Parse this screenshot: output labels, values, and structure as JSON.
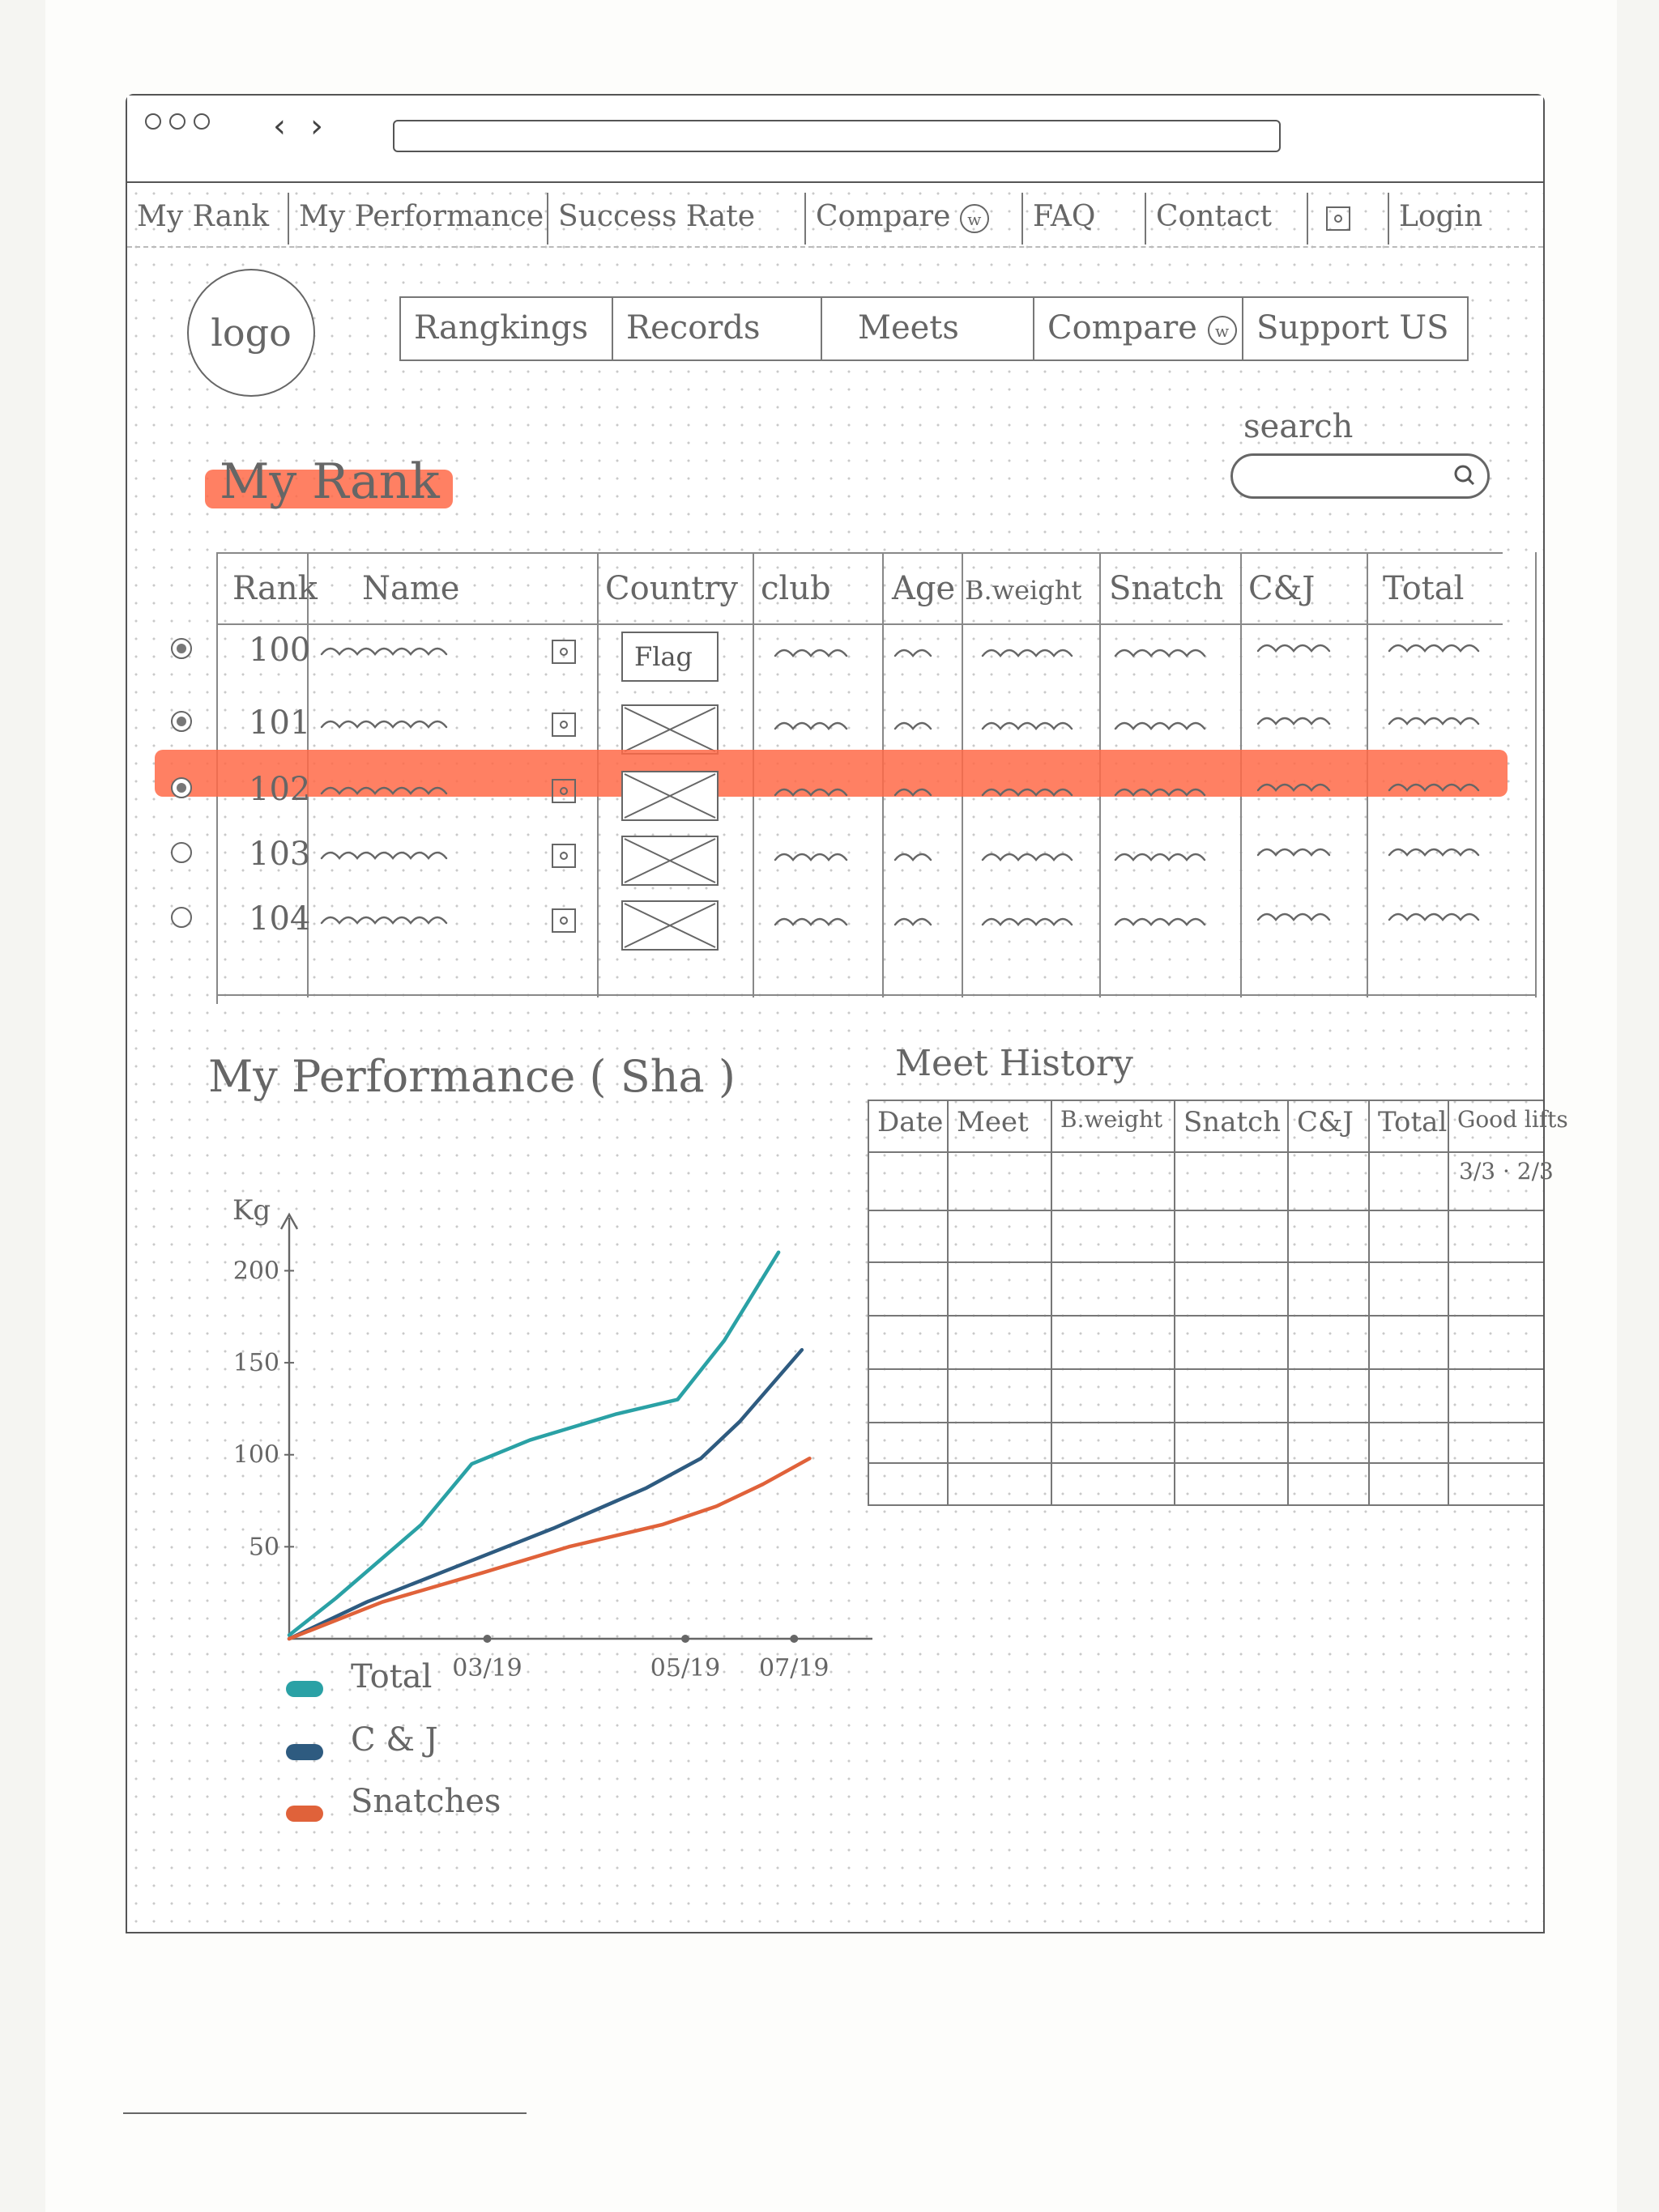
{
  "top_nav": {
    "items": [
      "My Rank",
      "My Performance",
      "Success Rate",
      "Compare",
      "FAQ",
      "Contact",
      "Login"
    ],
    "compare_badge": "w"
  },
  "logo": {
    "text": "logo"
  },
  "sub_nav": {
    "items": [
      "Rangkings",
      "Records",
      "Meets",
      "Compare",
      "Support US"
    ],
    "compare_badge": "w"
  },
  "page_title": "My Rank",
  "search": {
    "label": "search",
    "placeholder": ""
  },
  "rank_table": {
    "headers": [
      "Rank",
      "Name",
      "Country",
      "club",
      "Age",
      "B.weight",
      "Snatch",
      "C&J",
      "Total"
    ],
    "rows": [
      {
        "rank": "100",
        "flag": "Flag",
        "selected": true,
        "highlighted": false
      },
      {
        "rank": "101",
        "flag": "",
        "selected": true,
        "highlighted": false
      },
      {
        "rank": "102",
        "flag": "",
        "selected": true,
        "highlighted": true
      },
      {
        "rank": "103",
        "flag": "",
        "selected": false,
        "highlighted": false
      },
      {
        "rank": "104",
        "flag": "",
        "selected": false,
        "highlighted": false
      }
    ]
  },
  "performance": {
    "title": "My  Performance  ( Sha )"
  },
  "chart_data": {
    "type": "line",
    "ylabel": "Kg",
    "yticks": [
      50,
      100,
      150,
      200
    ],
    "xticks": [
      "03/19",
      "05/19",
      "07/19"
    ],
    "ylim": [
      0,
      220
    ],
    "xlim": [
      0,
      7.3
    ],
    "grid": false,
    "legend": "bottom-left",
    "series": [
      {
        "name": "Total",
        "color": "#2aa1a5",
        "x": [
          0,
          0.6,
          1.7,
          2.35,
          3.1,
          4.2,
          5.0,
          5.6,
          6.3
        ],
        "y": [
          2,
          22,
          62,
          95,
          108,
          122,
          130,
          162,
          210
        ]
      },
      {
        "name": "C & J",
        "color": "#2e5b80",
        "x": [
          0,
          1.0,
          2.2,
          3.4,
          4.6,
          5.3,
          5.8,
          6.6
        ],
        "y": [
          0,
          20,
          40,
          60,
          82,
          98,
          118,
          157
        ]
      },
      {
        "name": "Snatches",
        "color": "#e0623a",
        "x": [
          0,
          1.2,
          2.5,
          3.6,
          4.8,
          5.5,
          6.1,
          6.7
        ],
        "y": [
          0,
          20,
          36,
          50,
          62,
          72,
          84,
          98
        ]
      }
    ]
  },
  "meet_history": {
    "title": "Meet History",
    "headers": [
      "Date",
      "Meet",
      "B.weight",
      "Snatch",
      "C&J",
      "Total",
      "Good lifts"
    ],
    "good_lifts_sample": "3/3 · 2/3",
    "row_count": 7
  },
  "colors": {
    "highlight": "#ff6a48"
  }
}
